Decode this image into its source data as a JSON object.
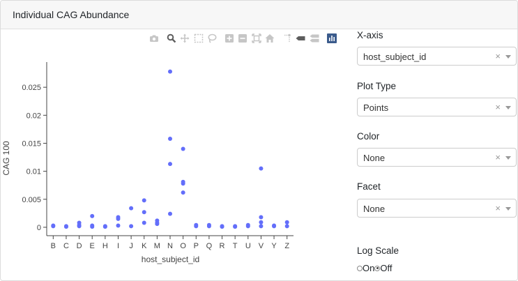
{
  "header": {
    "title": "Individual CAG Abundance"
  },
  "modebar": {
    "icons": [
      "camera-icon",
      "zoom-icon",
      "pan-icon",
      "box-select-icon",
      "lasso-icon",
      "zoom-in-icon",
      "zoom-out-icon",
      "autoscale-icon",
      "home-icon",
      "spike-lines-icon",
      "hover-closest-icon",
      "hover-compare-icon",
      "plotly-logo-icon"
    ]
  },
  "controls": {
    "xaxis": {
      "label": "X-axis",
      "value": "host_subject_id",
      "clear": "×"
    },
    "plot_type": {
      "label": "Plot Type",
      "value": "Points",
      "clear": "×"
    },
    "color": {
      "label": "Color",
      "value": "None",
      "clear": "×"
    },
    "facet": {
      "label": "Facet",
      "value": "None",
      "clear": "×"
    },
    "log_scale": {
      "label": "Log Scale",
      "options": [
        "On",
        "Off"
      ],
      "selected": "Off"
    }
  },
  "colors": {
    "points": "#636efa",
    "axis": "#444444"
  },
  "chart_data": {
    "type": "scatter",
    "xlabel": "host_subject_id",
    "ylabel": "CAG 100",
    "ylim": [
      -0.0015,
      0.0295
    ],
    "yticks": [
      0,
      0.005,
      0.01,
      0.015,
      0.02,
      0.025
    ],
    "ytick_labels": [
      "0",
      "0.005",
      "0.01",
      "0.015",
      "0.02",
      "0.025"
    ],
    "categories": [
      "B",
      "C",
      "D",
      "E",
      "H",
      "I",
      "J",
      "K",
      "M",
      "N",
      "O",
      "P",
      "Q",
      "R",
      "T",
      "U",
      "V",
      "Y",
      "Z"
    ],
    "points": {
      "B": [
        0.0002,
        0.0003
      ],
      "C": [
        0.0001,
        0.0002
      ],
      "D": [
        0.0002,
        0.0004,
        0.0008
      ],
      "E": [
        0.0001,
        0.0003,
        0.002
      ],
      "H": [
        0.0001,
        0.0002
      ],
      "I": [
        0.0003,
        0.0015,
        0.0018
      ],
      "J": [
        0.0002,
        0.0034
      ],
      "K": [
        0.0008,
        0.0027,
        0.0048
      ],
      "M": [
        0.0006,
        0.0008,
        0.0012
      ],
      "N": [
        0.0024,
        0.0113,
        0.0158,
        0.0278
      ],
      "O": [
        0.0062,
        0.0078,
        0.0081,
        0.014
      ],
      "P": [
        0.0002,
        0.0004
      ],
      "Q": [
        0.0002,
        0.0004
      ],
      "R": [
        0.0001,
        0.0002
      ],
      "T": [
        0.0001,
        0.0002
      ],
      "U": [
        0.0002,
        0.0004
      ],
      "V": [
        0.0002,
        0.0009,
        0.0018,
        0.0105
      ],
      "Y": [
        0.0002,
        0.0003
      ],
      "Z": [
        0.0002,
        0.0009
      ]
    }
  }
}
